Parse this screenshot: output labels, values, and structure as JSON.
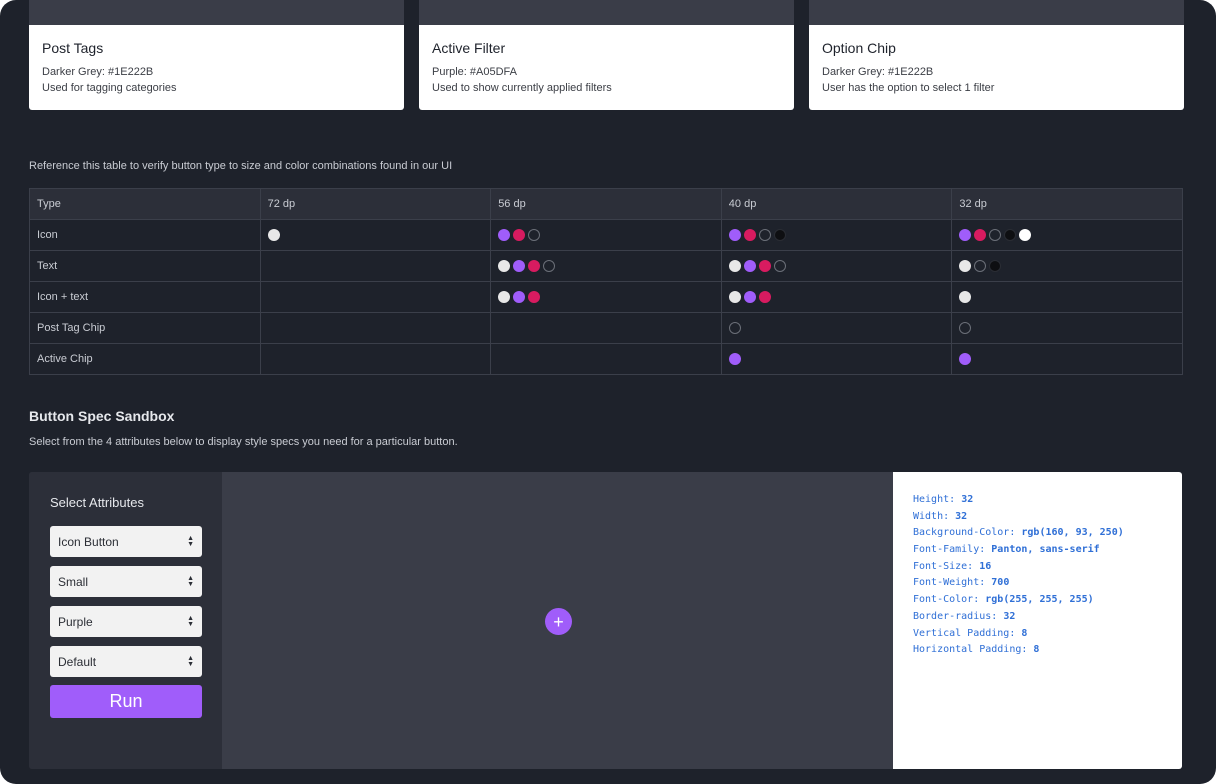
{
  "cards": [
    {
      "title": "Post Tags",
      "line1": "Darker Grey: #1E222B",
      "line2": "Used for tagging categories"
    },
    {
      "title": "Active Filter",
      "line1": "Purple: #A05DFA",
      "line2": "Used to show currently applied filters"
    },
    {
      "title": "Option Chip",
      "line1": "Darker Grey: #1E222B",
      "line2": "User has the option to select 1 filter"
    }
  ],
  "reference_text": "Reference this table to verify button type to size and color combinations found in our UI",
  "table": {
    "headers": [
      "Type",
      "72 dp",
      "56 dp",
      "40 dp",
      "32 dp"
    ],
    "rows": [
      {
        "type": "Icon",
        "c72": [
          "white"
        ],
        "c56": [
          "purple",
          "pink",
          "outline"
        ],
        "c40": [
          "purple",
          "pink",
          "outline",
          "black"
        ],
        "c32": [
          "purple",
          "pink",
          "outline",
          "black",
          "brightwhite"
        ]
      },
      {
        "type": "Text",
        "c72": [],
        "c56": [
          "white",
          "purple",
          "pink",
          "outline"
        ],
        "c40": [
          "white",
          "purple",
          "pink",
          "outline"
        ],
        "c32": [
          "white",
          "outline",
          "black"
        ]
      },
      {
        "type": "Icon + text",
        "c72": [],
        "c56": [
          "white",
          "purple",
          "pink"
        ],
        "c40": [
          "white",
          "purple",
          "pink"
        ],
        "c32": [
          "white"
        ]
      },
      {
        "type": "Post Tag Chip",
        "c72": [],
        "c56": [],
        "c40": [
          "outline"
        ],
        "c32": [
          "outline"
        ]
      },
      {
        "type": "Active Chip",
        "c72": [],
        "c56": [],
        "c40": [
          "purple"
        ],
        "c32": [
          "purple"
        ]
      }
    ]
  },
  "sandbox": {
    "title": "Button Spec Sandbox",
    "subtitle": "Select from the 4 attributes below to display style specs you need for a particular button.",
    "attributes_label": "Select Attributes",
    "selects": [
      "Icon Button",
      "Small",
      "Purple",
      "Default"
    ],
    "run_label": "Run",
    "preview_glyph": "+",
    "specs": [
      {
        "key": "Height:",
        "value": "32"
      },
      {
        "key": "Width:",
        "value": "32"
      },
      {
        "key": "Background-Color:",
        "value": "rgb(160, 93, 250)"
      },
      {
        "key": "Font-Family:",
        "value": "Panton, sans-serif"
      },
      {
        "key": "Font-Size:",
        "value": "16"
      },
      {
        "key": "Font-Weight:",
        "value": "700"
      },
      {
        "key": "Font-Color:",
        "value": "rgb(255, 255, 255)"
      },
      {
        "key": "Border-radius:",
        "value": "32"
      },
      {
        "key": "Vertical Padding:",
        "value": "8"
      },
      {
        "key": "Horizontal Padding:",
        "value": "8"
      }
    ]
  },
  "colors": {
    "background": "#1E222B",
    "purple": "#A05DFA",
    "pink": "#D81B60",
    "spec_text": "#2F6FD6"
  }
}
